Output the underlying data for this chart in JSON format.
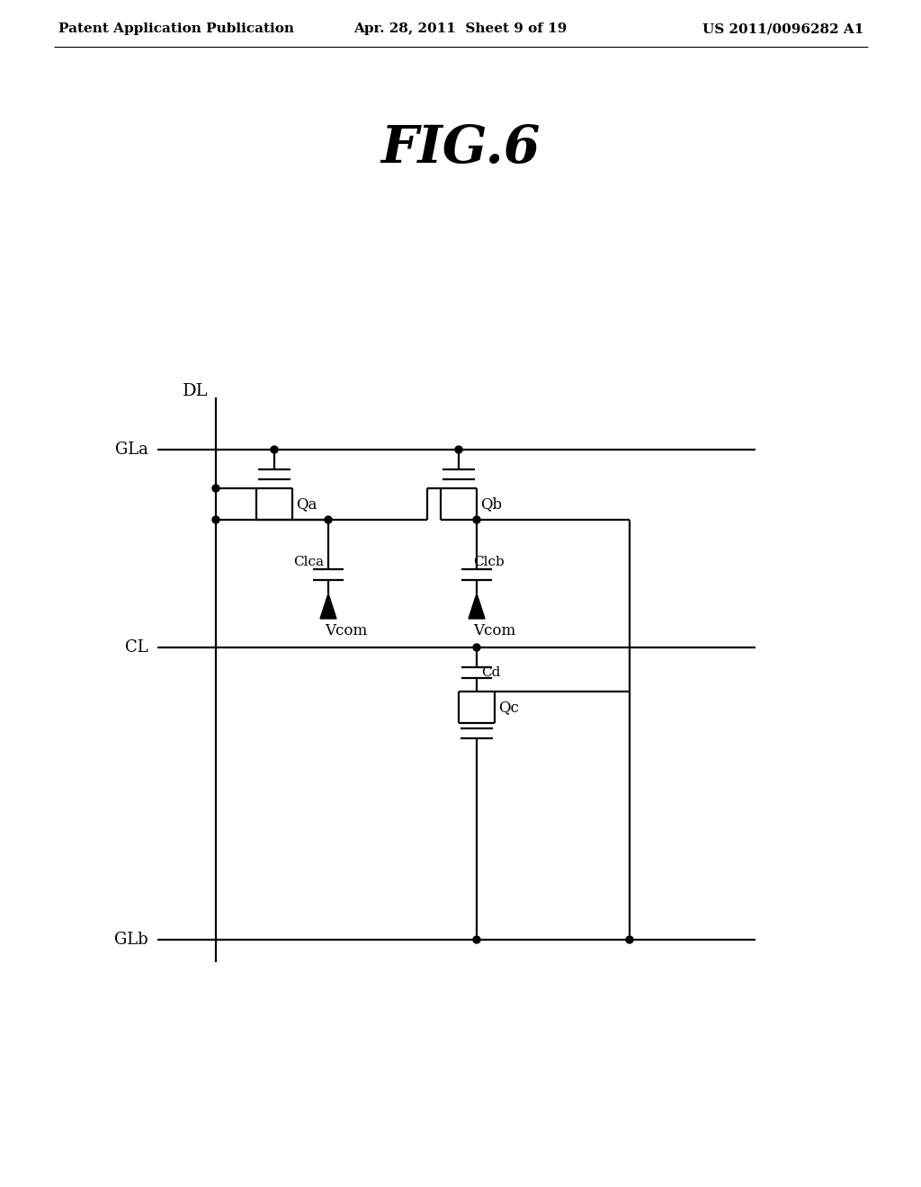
{
  "bg_color": "#ffffff",
  "line_color": "#000000",
  "header_left": "Patent Application Publication",
  "header_center": "Apr. 28, 2011  Sheet 9 of 19",
  "header_right": "US 2011/0096282 A1",
  "fig_title": "FIG.6",
  "label_DL": "DL",
  "label_GLa": "GLa",
  "label_CL": "CL",
  "label_GLb": "GLb",
  "label_Qa": "Qa",
  "label_Qb": "Qb",
  "label_Qc": "Qc",
  "label_Clca": "Clca",
  "label_Clcb": "Clcb",
  "label_Cd": "Cd",
  "label_Vcom1": "Vcom",
  "label_Vcom2": "Vcom",
  "lw": 1.6,
  "dot_r": 4
}
